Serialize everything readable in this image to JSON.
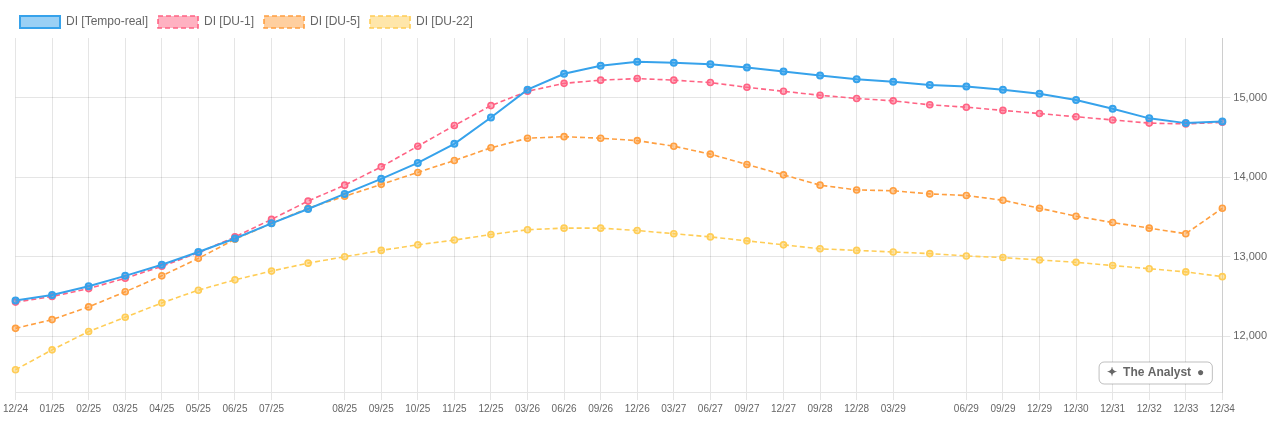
{
  "chart_data": {
    "type": "line",
    "categories": [
      "12/24",
      "01/25",
      "02/25",
      "03/25",
      "04/25",
      "05/25",
      "06/25",
      "07/25",
      null,
      "08/25",
      "09/25",
      "10/25",
      "11/25",
      "12/25",
      "03/26",
      "06/26",
      "09/26",
      "12/26",
      "03/27",
      "06/27",
      "09/27",
      "12/27",
      "09/28",
      "12/28",
      "03/29",
      null,
      "06/29",
      "09/29",
      "12/29",
      "12/30",
      "12/31",
      "12/32",
      "12/33",
      "12/34"
    ],
    "series": [
      {
        "name": "DI [Tempo-real]",
        "line_style": "solid",
        "marker": "o",
        "values": [
          12450,
          12520,
          12630,
          12760,
          12900,
          13060,
          13230,
          13420,
          13600,
          13790,
          13980,
          14180,
          14420,
          14750,
          15100,
          15300,
          15400,
          15450,
          15440,
          15420,
          15380,
          15330,
          15280,
          15230,
          15200,
          15160,
          15140,
          15100,
          15050,
          14970,
          14860,
          14740,
          14680,
          14700
        ]
      },
      {
        "name": "DI [DU-1]",
        "line_style": "dashed",
        "marker": "o",
        "values": [
          12430,
          12500,
          12600,
          12730,
          12880,
          13050,
          13250,
          13470,
          13700,
          13900,
          14130,
          14390,
          14650,
          14900,
          15080,
          15180,
          15220,
          15240,
          15220,
          15190,
          15130,
          15080,
          15030,
          14990,
          14960,
          14910,
          14880,
          14840,
          14800,
          14760,
          14720,
          14680,
          14670,
          14690
        ]
      },
      {
        "name": "DI [DU-5]",
        "line_style": "dashed",
        "marker": "o",
        "values": [
          12100,
          12210,
          12370,
          12560,
          12760,
          12980,
          13220,
          13420,
          13610,
          13760,
          13910,
          14060,
          14210,
          14370,
          14490,
          14510,
          14490,
          14460,
          14390,
          14290,
          14160,
          14030,
          13900,
          13840,
          13830,
          13790,
          13770,
          13710,
          13610,
          13510,
          13430,
          13360,
          13290,
          13610
        ]
      },
      {
        "name": "DI [DU-22]",
        "line_style": "dashed",
        "marker": "o",
        "values": [
          11580,
          11830,
          12060,
          12240,
          12420,
          12580,
          12710,
          12820,
          12920,
          13000,
          13080,
          13150,
          13210,
          13280,
          13340,
          13360,
          13360,
          13330,
          13290,
          13250,
          13200,
          13150,
          13100,
          13080,
          13060,
          13040,
          13010,
          12990,
          12960,
          12930,
          12890,
          12850,
          12810,
          12750
        ]
      }
    ],
    "ylim": [
      11300,
      15750
    ],
    "yticks": [
      {
        "value": 12000,
        "label": "12,000"
      },
      {
        "value": 13000,
        "label": "13,000"
      },
      {
        "value": 14000,
        "label": "14,000"
      },
      {
        "value": 15000,
        "label": "15,000"
      }
    ],
    "grid": true,
    "legend": "upper left",
    "annotations": [
      "✦",
      "The Analyst",
      "●"
    ]
  }
}
